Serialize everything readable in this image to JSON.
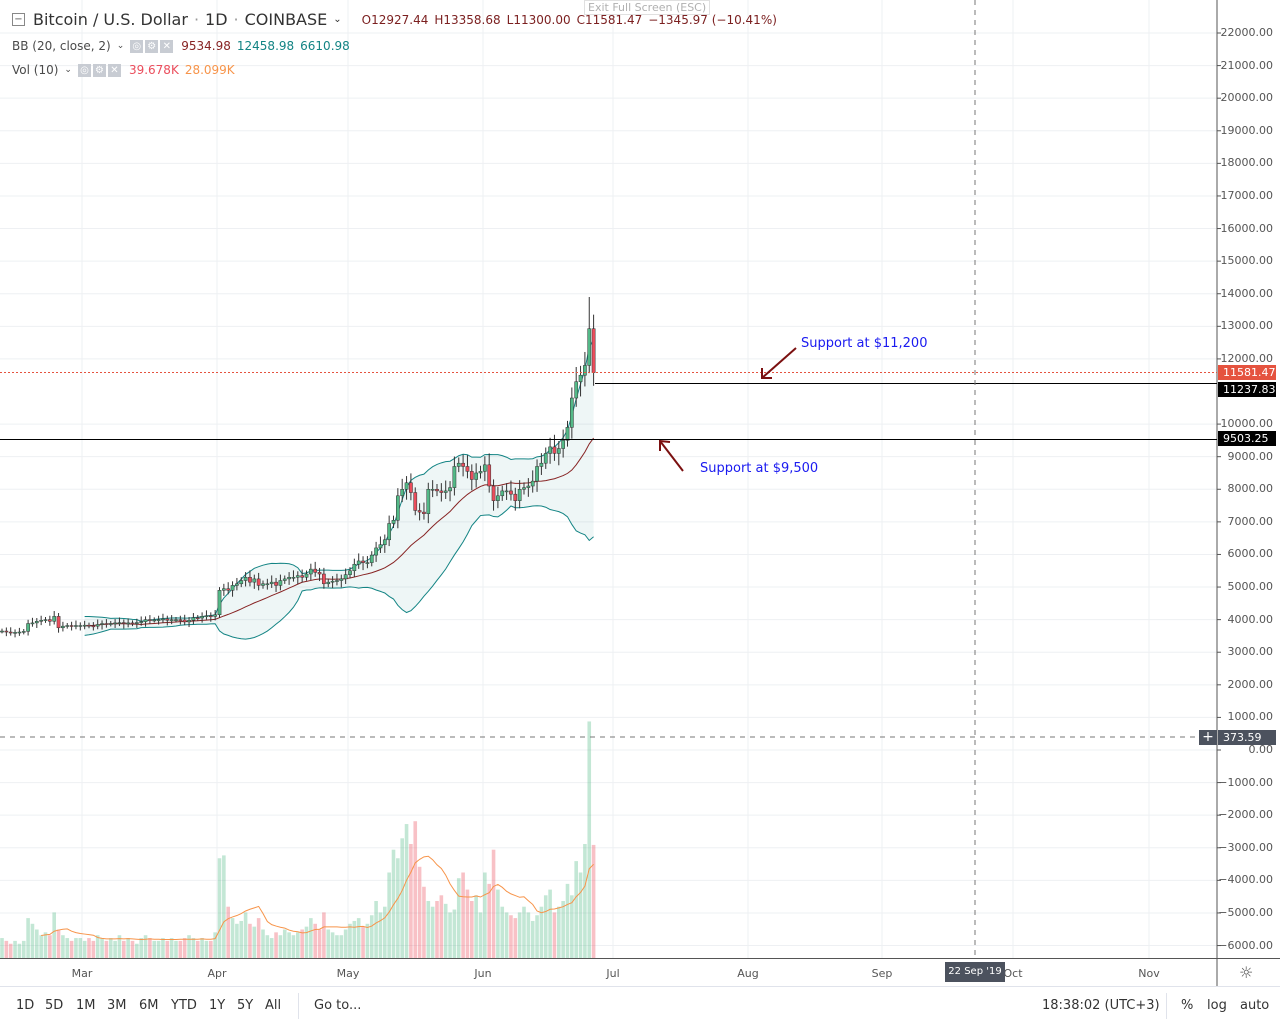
{
  "header": {
    "symbol": "Bitcoin / U.S. Dollar",
    "interval": "1D",
    "exchange": "COINBASE",
    "open": "O12927.44",
    "high": "H13358.68",
    "low": "L11300.00",
    "close": "C11581.47",
    "change": "−1345.97 (−10.41%)",
    "exit_fullscreen": "Exit Full Screen (ESC)"
  },
  "indicators": {
    "bb": {
      "label": "BB (20, close, 2)",
      "basis": "9534.98",
      "upper": "12458.98",
      "lower": "6610.98"
    },
    "vol": {
      "label": "Vol (10)",
      "value": "39.678K",
      "ma": "28.099K"
    }
  },
  "price_axis": {
    "labels": [
      "22000.00",
      "21000.00",
      "20000.00",
      "19000.00",
      "18000.00",
      "17000.00",
      "16000.00",
      "15000.00",
      "14000.00",
      "13000.00",
      "12000.00",
      "10000.00",
      "9000.00",
      "8000.00",
      "7000.00",
      "6000.00",
      "5000.00",
      "4000.00",
      "3000.00",
      "2000.00",
      "1000.00",
      "0.00",
      "−1000.00",
      "−2000.00",
      "−3000.00",
      "−4000.00",
      "−5000.00",
      "−6000.00"
    ],
    "tags": {
      "last": "11581.47",
      "line1": "11237.83",
      "line2": "9503.25",
      "crosshair": "373.59"
    }
  },
  "time_axis": {
    "labels": [
      "Mar",
      "Apr",
      "May",
      "Jun",
      "Jul",
      "Aug",
      "Sep",
      "Oct",
      "Nov"
    ],
    "crosshair": "22 Sep '19"
  },
  "annotations": {
    "support1": "Support at $11,200",
    "support2": "Support at $9,500"
  },
  "toolbar": {
    "ranges": [
      "1D",
      "5D",
      "1M",
      "3M",
      "6M",
      "YTD",
      "1Y",
      "5Y",
      "All"
    ],
    "goto": "Go to...",
    "time": "18:38:02 (UTC+3)",
    "percent": "%",
    "log": "log",
    "auto": "auto"
  },
  "colors": {
    "up": "#53b987",
    "down": "#eb4d5c",
    "band": "#138484",
    "basis": "#872323",
    "last": "#e5533f",
    "note": "#1a1af0",
    "arrow": "#7b1010"
  },
  "chart_data": {
    "type": "candlestick",
    "closes": [
      3650,
      3620,
      3600,
      3610,
      3620,
      3640,
      3880,
      3900,
      3950,
      3980,
      4000,
      3950,
      4100,
      3750,
      3800,
      3820,
      3800,
      3820,
      3820,
      3830,
      3810,
      3800,
      3850,
      3880,
      3870,
      3880,
      3900,
      3910,
      3880,
      3900,
      3880,
      3910,
      3940,
      4000,
      3990,
      3990,
      4000,
      4020,
      3980,
      4000,
      4000,
      3990,
      3930,
      3980,
      4060,
      4050,
      4100,
      4120,
      4100,
      4150,
      4900,
      4950,
      4900,
      5050,
      5100,
      5200,
      5300,
      5150,
      5250,
      5050,
      5100,
      5100,
      5150,
      5050,
      5200,
      5250,
      5300,
      5300,
      5350,
      5300,
      5400,
      5550,
      5450,
      5400,
      5100,
      5150,
      5180,
      5200,
      5250,
      5380,
      5500,
      5700,
      5800,
      5750,
      5750,
      5980,
      6200,
      6300,
      6450,
      6950,
      7050,
      7800,
      8000,
      8200,
      7900,
      7350,
      7300,
      7250,
      8000,
      8000,
      7950,
      7900,
      7950,
      8050,
      8700,
      8800,
      8700,
      8550,
      8300,
      8500,
      8550,
      8750,
      8100,
      7650,
      7800,
      7950,
      7950,
      7850,
      7650,
      8000,
      8050,
      8100,
      8250,
      8700,
      8800,
      9100,
      9300,
      9100,
      9250,
      9500,
      9900,
      10800,
      11300,
      11500,
      11800,
      12927,
      11581
    ],
    "volumes_k": [
      7,
      6,
      5,
      6,
      5,
      6,
      14,
      12,
      10,
      8,
      9,
      8,
      16,
      10,
      8,
      7,
      6,
      7,
      7,
      6,
      7,
      6,
      8,
      7,
      6,
      7,
      6,
      8,
      6,
      7,
      6,
      5,
      7,
      8,
      7,
      6,
      6,
      7,
      6,
      7,
      6,
      6,
      7,
      8,
      7,
      6,
      7,
      6,
      6,
      9,
      35,
      36,
      18,
      14,
      12,
      13,
      16,
      12,
      11,
      14,
      10,
      8,
      7,
      9,
      8,
      10,
      9,
      8,
      9,
      10,
      11,
      14,
      12,
      10,
      16,
      10,
      9,
      8,
      8,
      10,
      12,
      13,
      14,
      11,
      12,
      15,
      20,
      16,
      18,
      30,
      38,
      35,
      42,
      47,
      40,
      48,
      32,
      25,
      20,
      18,
      20,
      22,
      19,
      16,
      17,
      28,
      30,
      24,
      20,
      22,
      16,
      30,
      26,
      38,
      24,
      18,
      16,
      15,
      14,
      16,
      18,
      16,
      13,
      15,
      18,
      22,
      24,
      16,
      18,
      20,
      26,
      22,
      34,
      30,
      40,
      83,
      39.678
    ]
  }
}
